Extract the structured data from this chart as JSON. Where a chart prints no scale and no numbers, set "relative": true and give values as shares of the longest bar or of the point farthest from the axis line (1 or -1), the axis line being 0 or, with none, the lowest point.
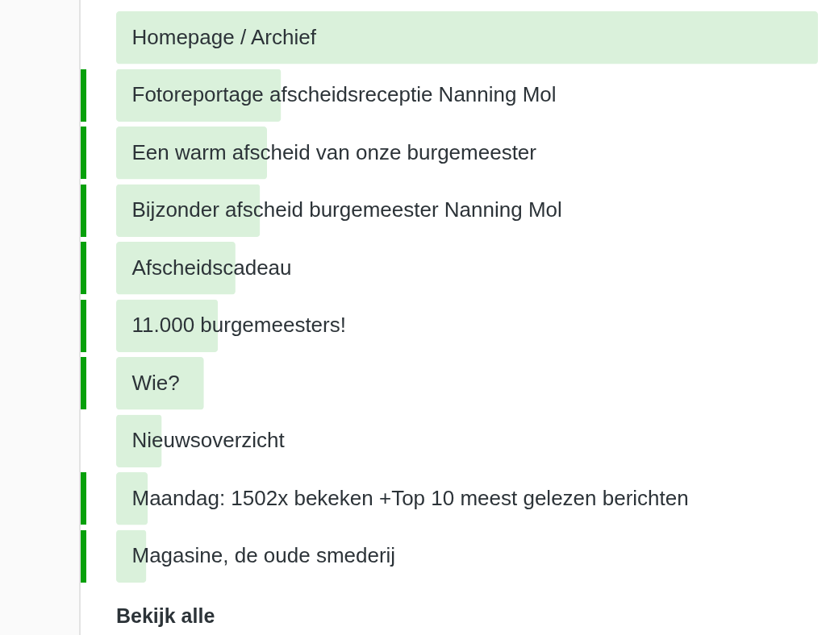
{
  "chart_data": {
    "type": "bar",
    "orientation": "horizontal",
    "relative": true,
    "color": "#daf1db",
    "categories": [
      "Homepage / Archief",
      "Fotoreportage afscheidsreceptie Nanning Mol",
      "Een warm afscheid van onze burgemeester",
      "Bijzonder afscheid burgemeester Nanning Mol",
      "Afscheidscadeau",
      "11.000 burgemeesters!",
      "Wie?",
      "Nieuwsoverzicht",
      "Maandag: 1502x bekeken +Top 10 meest gelezen berichten",
      "Magasine, de oude smederij"
    ],
    "values": [
      1,
      0.235,
      0.215,
      0.205,
      0.17,
      0.145,
      0.125,
      0.065,
      0.045,
      0.043
    ],
    "annotations": [
      "Bekijk alle"
    ]
  }
}
